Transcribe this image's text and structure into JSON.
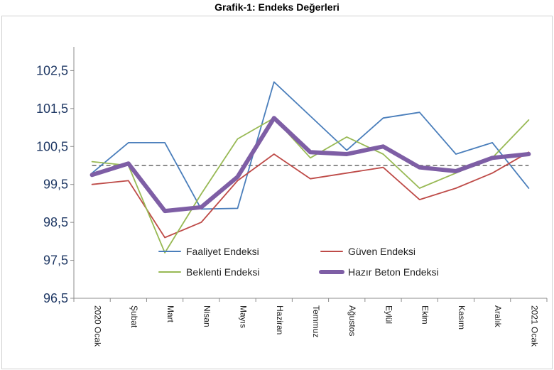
{
  "chart_data": {
    "type": "line",
    "title": "Grafik-1: Endeks Değerleri",
    "categories": [
      "2020 Ocak",
      "Şubat",
      "Mart",
      "Nisan",
      "Mayıs",
      "Haziran",
      "Temmuz",
      "Ağustos",
      "Eylül",
      "Ekim",
      "Kasım",
      "Aralık",
      "2021 Ocak"
    ],
    "ylim": [
      96.5,
      103.2
    ],
    "yticks": [
      "96,5",
      "97,5",
      "98,5",
      "99,5",
      "100,5",
      "101,5",
      "102,5"
    ],
    "ytick_values": [
      96.5,
      97.5,
      98.5,
      99.5,
      100.5,
      101.5,
      102.5
    ],
    "reference_line": 100,
    "series": [
      {
        "name": "Faaliyet Endeksi",
        "color": "#4a7ebb",
        "values": [
          99.8,
          100.6,
          100.6,
          98.85,
          98.87,
          102.2,
          101.3,
          100.4,
          101.25,
          101.4,
          100.3,
          100.6,
          99.4
        ]
      },
      {
        "name": "Güven Endeksi",
        "color": "#be4b48",
        "values": [
          99.5,
          99.6,
          98.1,
          98.5,
          99.6,
          100.3,
          99.65,
          99.8,
          99.95,
          99.1,
          99.4,
          99.8,
          100.35
        ]
      },
      {
        "name": "Beklenti Endeksi",
        "color": "#98b954",
        "values": [
          100.1,
          100.0,
          97.7,
          99.25,
          100.7,
          101.25,
          100.2,
          100.75,
          100.3,
          99.4,
          99.8,
          100.2,
          101.2
        ]
      },
      {
        "name": "Hazır Beton Endeksi",
        "color": "#7e5ea5",
        "values": [
          99.75,
          100.05,
          98.8,
          98.9,
          99.7,
          101.25,
          100.35,
          100.3,
          100.5,
          99.95,
          99.85,
          100.2,
          100.3
        ]
      }
    ],
    "legend_position": "bottom-center inside plot"
  }
}
